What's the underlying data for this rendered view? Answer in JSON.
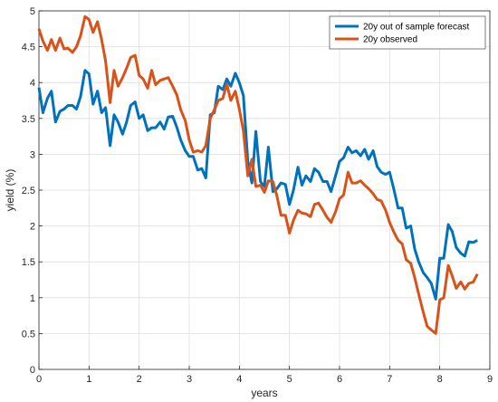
{
  "chart_data": {
    "type": "line",
    "xlabel": "years",
    "ylabel": "yield (%)",
    "xlim": [
      0,
      9
    ],
    "ylim": [
      0,
      5
    ],
    "xticks": [
      "0",
      "1",
      "2",
      "3",
      "4",
      "5",
      "6",
      "7",
      "8",
      "9"
    ],
    "yticks": [
      "0",
      "0.5",
      "1",
      "1.5",
      "2",
      "2.5",
      "3",
      "3.5",
      "4",
      "4.5",
      "5"
    ],
    "grid": true,
    "legend_position": "top-right",
    "series": [
      {
        "name": "20y out of sample forecast",
        "color": "#0072BD",
        "x": [
          0.0,
          0.08,
          0.17,
          0.25,
          0.33,
          0.42,
          0.5,
          0.58,
          0.67,
          0.75,
          0.83,
          0.92,
          1.0,
          1.08,
          1.17,
          1.25,
          1.33,
          1.42,
          1.5,
          1.58,
          1.67,
          1.75,
          1.83,
          1.92,
          2.0,
          2.08,
          2.17,
          2.25,
          2.33,
          2.42,
          2.5,
          2.58,
          2.67,
          2.75,
          2.83,
          2.92,
          3.0,
          3.08,
          3.17,
          3.25,
          3.33,
          3.42,
          3.5,
          3.58,
          3.67,
          3.75,
          3.83,
          3.92,
          4.0,
          4.08,
          4.17,
          4.25,
          4.33,
          4.42,
          4.5,
          4.58,
          4.67,
          4.75,
          4.83,
          4.92,
          5.0,
          5.08,
          5.17,
          5.25,
          5.33,
          5.42,
          5.5,
          5.58,
          5.67,
          5.75,
          5.83,
          5.92,
          6.0,
          6.08,
          6.17,
          6.25,
          6.33,
          6.42,
          6.5,
          6.58,
          6.67,
          6.75,
          6.83,
          6.92,
          7.0,
          7.08,
          7.17,
          7.25,
          7.33,
          7.42,
          7.5,
          7.58,
          7.67,
          7.75,
          7.83,
          7.92,
          8.0,
          8.08,
          8.17,
          8.25,
          8.33,
          8.42,
          8.5,
          8.58,
          8.67,
          8.75
        ],
        "values": [
          3.93,
          3.58,
          3.78,
          3.88,
          3.45,
          3.6,
          3.63,
          3.68,
          3.68,
          3.63,
          3.8,
          4.17,
          4.12,
          3.7,
          3.88,
          3.58,
          3.65,
          3.12,
          3.55,
          3.45,
          3.28,
          3.45,
          3.68,
          3.73,
          3.5,
          3.55,
          3.33,
          3.37,
          3.37,
          3.45,
          3.35,
          3.52,
          3.53,
          3.38,
          3.2,
          3.05,
          2.97,
          2.97,
          2.78,
          2.8,
          2.67,
          3.55,
          3.58,
          3.95,
          3.9,
          4.05,
          3.95,
          4.13,
          4.0,
          3.82,
          2.9,
          2.6,
          3.32,
          2.62,
          2.55,
          3.1,
          2.48,
          2.52,
          2.6,
          2.58,
          2.3,
          2.5,
          2.82,
          2.57,
          2.7,
          2.62,
          2.8,
          2.75,
          2.62,
          2.62,
          2.48,
          2.7,
          2.9,
          2.95,
          3.1,
          3.02,
          3.05,
          2.98,
          3.07,
          2.93,
          3.05,
          2.83,
          2.75,
          2.72,
          2.75,
          2.52,
          2.25,
          2.25,
          1.97,
          2.0,
          1.68,
          1.5,
          1.35,
          1.28,
          1.2,
          0.98,
          1.55,
          1.55,
          2.02,
          1.92,
          1.7,
          1.62,
          1.58,
          1.78,
          1.77,
          1.8
        ]
      },
      {
        "name": "20y observed",
        "color": "#D95319",
        "x": [
          0.0,
          0.08,
          0.17,
          0.25,
          0.33,
          0.42,
          0.5,
          0.58,
          0.67,
          0.75,
          0.83,
          0.92,
          1.0,
          1.08,
          1.17,
          1.25,
          1.33,
          1.42,
          1.5,
          1.58,
          1.67,
          1.75,
          1.83,
          1.92,
          2.0,
          2.08,
          2.17,
          2.25,
          2.33,
          2.42,
          2.5,
          2.58,
          2.67,
          2.75,
          2.83,
          2.92,
          3.0,
          3.08,
          3.17,
          3.25,
          3.33,
          3.42,
          3.5,
          3.58,
          3.67,
          3.75,
          3.83,
          3.92,
          4.0,
          4.08,
          4.17,
          4.25,
          4.33,
          4.42,
          4.5,
          4.58,
          4.67,
          4.75,
          4.83,
          4.92,
          5.0,
          5.08,
          5.17,
          5.25,
          5.33,
          5.42,
          5.5,
          5.58,
          5.67,
          5.75,
          5.83,
          5.92,
          6.0,
          6.08,
          6.17,
          6.25,
          6.33,
          6.42,
          6.5,
          6.58,
          6.67,
          6.75,
          6.83,
          6.92,
          7.0,
          7.08,
          7.17,
          7.25,
          7.33,
          7.42,
          7.5,
          7.58,
          7.67,
          7.75,
          7.83,
          7.92,
          8.0,
          8.08,
          8.17,
          8.25,
          8.33,
          8.42,
          8.5,
          8.58,
          8.67,
          8.75
        ],
        "values": [
          4.75,
          4.58,
          4.45,
          4.6,
          4.45,
          4.62,
          4.47,
          4.48,
          4.42,
          4.5,
          4.65,
          4.92,
          4.88,
          4.7,
          4.85,
          4.6,
          4.3,
          3.72,
          4.17,
          3.95,
          4.07,
          4.2,
          4.35,
          4.38,
          4.1,
          4.05,
          3.92,
          4.17,
          3.97,
          4.03,
          4.05,
          4.07,
          3.95,
          3.83,
          3.62,
          3.47,
          3.2,
          3.03,
          3.05,
          3.03,
          3.12,
          3.5,
          3.62,
          3.75,
          3.78,
          3.98,
          3.75,
          3.88,
          3.63,
          3.33,
          2.7,
          2.93,
          2.55,
          2.57,
          2.47,
          2.63,
          2.62,
          2.42,
          2.15,
          2.15,
          1.9,
          2.08,
          2.22,
          2.18,
          2.17,
          2.13,
          2.3,
          2.32,
          2.22,
          2.12,
          2.05,
          2.2,
          2.38,
          2.43,
          2.75,
          2.6,
          2.6,
          2.63,
          2.57,
          2.52,
          2.45,
          2.37,
          2.35,
          2.22,
          2.05,
          1.92,
          1.8,
          1.75,
          1.53,
          1.48,
          1.28,
          1.05,
          0.8,
          0.6,
          0.55,
          0.5,
          0.97,
          1.0,
          1.45,
          1.3,
          1.13,
          1.22,
          1.12,
          1.2,
          1.22,
          1.33
        ]
      }
    ]
  }
}
